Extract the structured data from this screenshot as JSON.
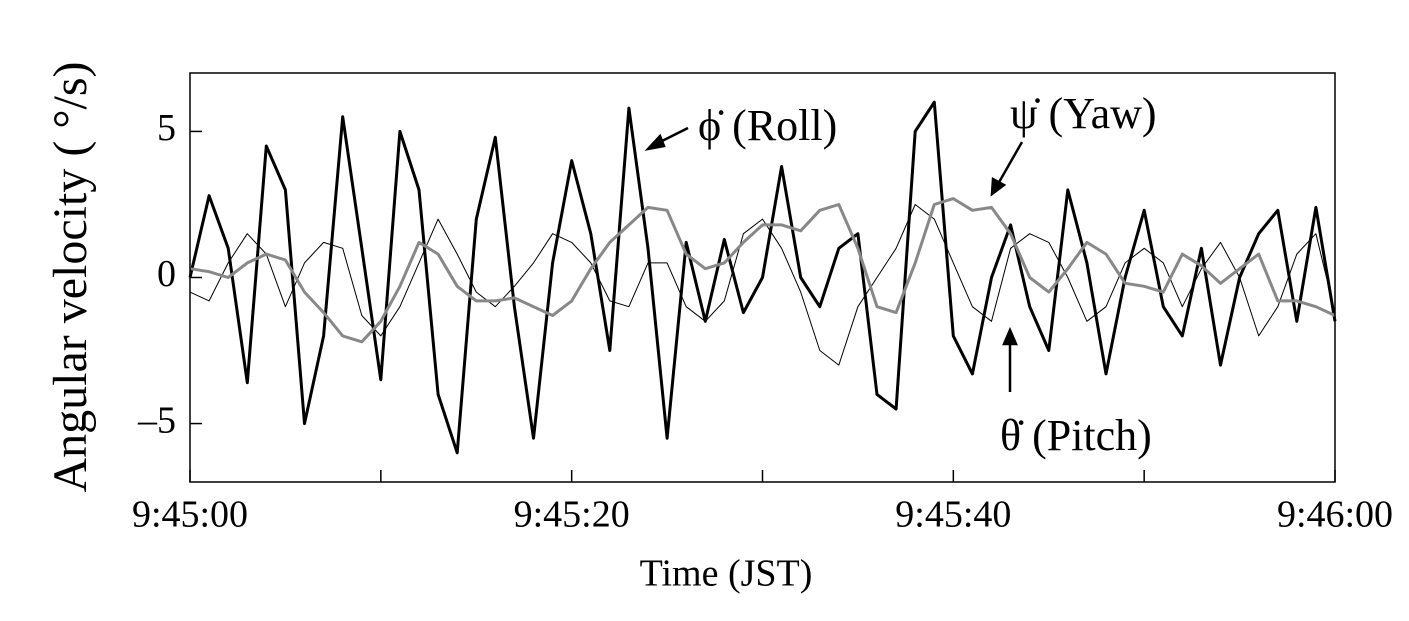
{
  "chart_data": {
    "type": "line",
    "xlabel": "Time (JST)",
    "ylabel": "Angular velocity ( °/s)",
    "x": [
      0,
      1,
      2,
      3,
      4,
      5,
      6,
      7,
      8,
      9,
      10,
      11,
      12,
      13,
      14,
      15,
      16,
      17,
      18,
      19,
      20,
      21,
      22,
      23,
      24,
      25,
      26,
      27,
      28,
      29,
      30,
      31,
      32,
      33,
      34,
      35,
      36,
      37,
      38,
      39,
      40,
      41,
      42,
      43,
      44,
      45,
      46,
      47,
      48,
      49,
      50,
      51,
      52,
      53,
      54,
      55,
      56,
      57,
      58,
      59,
      60
    ],
    "series": [
      {
        "name": "ϕ̇ (Roll)",
        "color": "#000000",
        "width": 3,
        "values": [
          0,
          2.8,
          1,
          -3.6,
          4.5,
          3,
          -5,
          -2,
          5.5,
          1,
          -3.5,
          5,
          3,
          -4,
          -6,
          2,
          4.8,
          -1,
          -5.5,
          0.5,
          4,
          1.5,
          -2.5,
          5.8,
          1,
          -5.5,
          1.2,
          -1.5,
          1.3,
          -1.2,
          0,
          3.8,
          0,
          -1,
          1,
          1.5,
          -4,
          -4.5,
          5,
          6,
          -2,
          -3.3,
          0,
          1.8,
          -1,
          -2.5,
          3,
          0.5,
          -3.3,
          0,
          2.3,
          -1,
          -2,
          1,
          -3,
          0,
          1.5,
          2.3,
          -1.5,
          2.4,
          -1.5
        ]
      },
      {
        "name": "θ̇ (Pitch)",
        "color": "#000000",
        "width": 1,
        "values": [
          -0.5,
          -0.8,
          0.5,
          1.5,
          0.8,
          -1,
          0.5,
          1.2,
          1,
          -1.3,
          -2,
          -1,
          0.5,
          2,
          0.8,
          -0.5,
          -1,
          -0.3,
          0.5,
          1.5,
          1.2,
          0.5,
          -0.8,
          -1,
          0.5,
          0.5,
          -1,
          -1.5,
          -0.8,
          1.5,
          2,
          1,
          -0.5,
          -2.5,
          -3,
          -1,
          0,
          1,
          2.5,
          2,
          0.5,
          -1,
          -1.5,
          1,
          1.5,
          1.2,
          0,
          -1.5,
          -1,
          0.5,
          1,
          0.5,
          -1,
          0.3,
          1.2,
          0,
          -2,
          -1,
          0.8,
          1.5,
          -1.2
        ]
      },
      {
        "name": "ψ̇ (Yaw)",
        "color": "#888888",
        "width": 3,
        "values": [
          0.3,
          0.2,
          0,
          0.5,
          0.8,
          0.6,
          -0.5,
          -1.2,
          -2,
          -2.2,
          -1.5,
          -0.3,
          1.2,
          0.8,
          -0.3,
          -0.8,
          -0.8,
          -0.7,
          -1,
          -1.3,
          -0.8,
          0.3,
          1.2,
          1.8,
          2.4,
          2.3,
          0.8,
          0.3,
          0.5,
          1.2,
          1.8,
          1.8,
          1.6,
          2.3,
          2.5,
          1,
          -1,
          -1.2,
          0.5,
          2.5,
          2.7,
          2.3,
          2.4,
          1.5,
          0,
          -0.5,
          0.3,
          1.2,
          0.8,
          -0.2,
          -0.3,
          -0.5,
          0.8,
          0.4,
          -0.2,
          0.3,
          0.8,
          -0.8,
          -0.8,
          -1,
          -1.3
        ]
      }
    ],
    "xlim": [
      0,
      60
    ],
    "xticks": [
      {
        "value": 0,
        "label": "9:45:00"
      },
      {
        "value": 20,
        "label": "9:45:20"
      },
      {
        "value": 40,
        "label": "9:45:40"
      },
      {
        "value": 60,
        "label": "9:46:00"
      }
    ],
    "xminorticks": [
      10,
      30,
      50
    ],
    "ylim": [
      -7,
      7
    ],
    "yticks": [
      {
        "value": -5,
        "label": "–5"
      },
      0,
      5
    ]
  }
}
